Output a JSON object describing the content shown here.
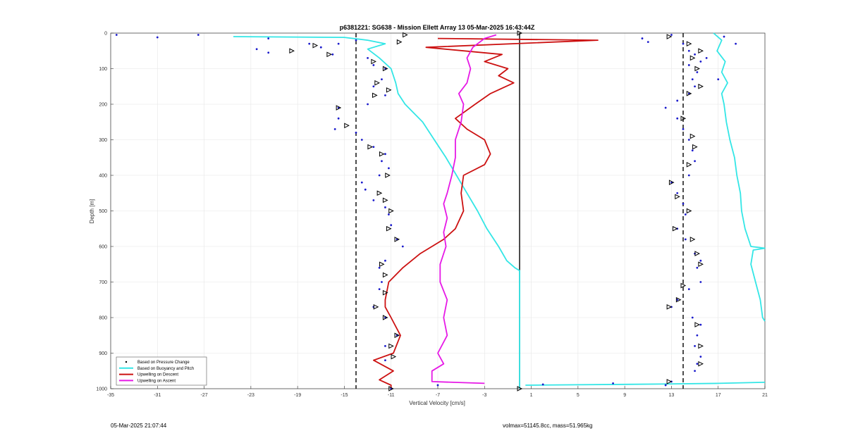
{
  "footer": {
    "timestamp": "05-Mar-2025 21:07:44",
    "info": "volmax=51145.8cc, mass=51.965kg"
  },
  "chart_data": {
    "type": "line",
    "title": "p6381221: SG638 - Mission Ellett Array 13 05-Mar-2025 16:43:44Z",
    "xlabel": "Vertical Velocity [cm/s]",
    "ylabel": "Depth [m]",
    "xlim": [
      -35,
      21
    ],
    "ylim": [
      1000,
      0
    ],
    "x_ticks": [
      -35,
      -31,
      -27,
      -23,
      -19,
      -15,
      -11,
      -7,
      -3,
      1,
      5,
      9,
      13,
      17,
      21
    ],
    "y_ticks": [
      0,
      100,
      200,
      300,
      400,
      500,
      600,
      700,
      800,
      900,
      1000
    ],
    "grid": true,
    "legend_position": "bottom-left",
    "legend": [
      {
        "label": "Based on Pressure Change",
        "color": "#000000",
        "style": "dot"
      },
      {
        "label": "Based on Buoyancy and Pitch",
        "color": "#33e6e6",
        "style": "line"
      },
      {
        "label": "Upwelling on Descent",
        "color": "#cc1111",
        "style": "line"
      },
      {
        "label": "Upwelling on Ascent",
        "color": "#e619e6",
        "style": "line"
      }
    ],
    "reference_lines": [
      {
        "x": -14,
        "style": "dashed",
        "color": "#000000"
      },
      {
        "x": 0,
        "style": "solid",
        "color": "#000000"
      },
      {
        "x": 14,
        "style": "dashed",
        "color": "#000000"
      }
    ],
    "series": [
      {
        "name": "Based on Buoyancy and Pitch",
        "color": "#33e6e6",
        "points": [
          [
            -24.5,
            10
          ],
          [
            -15,
            12
          ],
          [
            -13,
            20
          ],
          [
            -11.5,
            30
          ],
          [
            -13,
            45
          ],
          [
            -12,
            70
          ],
          [
            -11,
            100
          ],
          [
            -10.6,
            140
          ],
          [
            -10.4,
            170
          ],
          [
            -9.8,
            200
          ],
          [
            -8.3,
            250
          ],
          [
            -7.3,
            300
          ],
          [
            -6.3,
            350
          ],
          [
            -5.4,
            400
          ],
          [
            -4.5,
            450
          ],
          [
            -3.6,
            500
          ],
          [
            -2.8,
            550
          ],
          [
            -1.8,
            600
          ],
          [
            -1.1,
            640
          ],
          [
            -0.4,
            660
          ],
          [
            0,
            668
          ],
          [
            0,
            1000
          ]
        ]
      },
      {
        "name": "Based on Buoyancy and Pitch",
        "color": "#33e6e6",
        "points": [
          [
            0.5,
            990
          ],
          [
            5,
            989
          ],
          [
            12,
            987
          ],
          [
            17,
            985
          ],
          [
            21,
            982
          ]
        ]
      },
      {
        "name": "Based on Buoyancy and Pitch",
        "color": "#33e6e6",
        "points": [
          [
            16.6,
            0
          ],
          [
            17.3,
            20
          ],
          [
            16.9,
            50
          ],
          [
            17.6,
            80
          ],
          [
            17.3,
            110
          ],
          [
            17.8,
            140
          ],
          [
            17.3,
            170
          ],
          [
            17.5,
            200
          ],
          [
            17.7,
            250
          ],
          [
            18,
            300
          ],
          [
            18.4,
            350
          ],
          [
            18.6,
            400
          ],
          [
            18.9,
            450
          ],
          [
            19,
            500
          ],
          [
            19.3,
            550
          ],
          [
            19.8,
            600
          ],
          [
            21,
            605
          ],
          [
            20,
            610
          ],
          [
            19.8,
            650
          ],
          [
            20.2,
            700
          ],
          [
            20.6,
            750
          ],
          [
            20.8,
            800
          ],
          [
            21,
            810
          ]
        ]
      },
      {
        "name": "Upwelling on Descent",
        "color": "#cc1111",
        "points": [
          [
            -7,
            15
          ],
          [
            6.7,
            20
          ],
          [
            -8,
            40
          ],
          [
            -1.5,
            60
          ],
          [
            -3,
            80
          ],
          [
            -1,
            100
          ],
          [
            -1.8,
            120
          ],
          [
            -0.5,
            140
          ],
          [
            -2.5,
            170
          ],
          [
            -3.8,
            200
          ],
          [
            -5.5,
            240
          ],
          [
            -4.5,
            270
          ],
          [
            -3,
            300
          ],
          [
            -2.5,
            340
          ],
          [
            -3,
            370
          ],
          [
            -4.8,
            400
          ],
          [
            -5,
            450
          ],
          [
            -4.8,
            500
          ],
          [
            -5.5,
            550
          ],
          [
            -6.5,
            580
          ],
          [
            -8.5,
            620
          ],
          [
            -10,
            660
          ],
          [
            -11.2,
            700
          ],
          [
            -11.5,
            750
          ],
          [
            -11.5,
            770
          ],
          [
            -11,
            800
          ],
          [
            -10.2,
            850
          ],
          [
            -10.8,
            900
          ],
          [
            -12.5,
            920
          ],
          [
            -10.8,
            950
          ],
          [
            -12,
            975
          ],
          [
            -11,
            990
          ],
          [
            -11,
            1000
          ]
        ]
      },
      {
        "name": "Upwelling on Ascent",
        "color": "#e619e6",
        "points": [
          [
            -3,
            985
          ],
          [
            -7.5,
            980
          ],
          [
            -7.5,
            950
          ],
          [
            -6.5,
            930
          ],
          [
            -7,
            900
          ],
          [
            -6.2,
            850
          ],
          [
            -6.5,
            800
          ],
          [
            -6.2,
            750
          ],
          [
            -6.8,
            700
          ],
          [
            -6.8,
            650
          ],
          [
            -6.3,
            600
          ],
          [
            -6.5,
            560
          ],
          [
            -6.2,
            520
          ],
          [
            -6.5,
            480
          ],
          [
            -6.2,
            450
          ],
          [
            -5.8,
            400
          ],
          [
            -5.5,
            350
          ],
          [
            -5.5,
            300
          ],
          [
            -5,
            250
          ],
          [
            -4.8,
            200
          ],
          [
            -5.2,
            170
          ],
          [
            -4.5,
            140
          ],
          [
            -4.2,
            100
          ],
          [
            -4.5,
            70
          ],
          [
            -4,
            40
          ],
          [
            -3,
            15
          ],
          [
            -2,
            5
          ]
        ]
      }
    ],
    "markers": {
      "color": "#1a1acc",
      "points": [
        [
          -34.5,
          5
        ],
        [
          -31,
          12
        ],
        [
          -27.5,
          5
        ],
        [
          -21.5,
          15
        ],
        [
          -22.5,
          45
        ],
        [
          -21.5,
          55
        ],
        [
          -18,
          30
        ],
        [
          -17,
          40
        ],
        [
          -16,
          60
        ],
        [
          -15.5,
          30
        ],
        [
          -14,
          20
        ],
        [
          -13,
          70
        ],
        [
          -12.5,
          90
        ],
        [
          -11.5,
          100
        ],
        [
          -11.8,
          130
        ],
        [
          -12.5,
          150
        ],
        [
          -11.5,
          175
        ],
        [
          -13,
          200
        ],
        [
          -15.5,
          210
        ],
        [
          -15.5,
          240
        ],
        [
          -15.8,
          270
        ],
        [
          -14,
          280
        ],
        [
          -13.5,
          300
        ],
        [
          -12.5,
          320
        ],
        [
          -11.5,
          340
        ],
        [
          -11.8,
          360
        ],
        [
          -11.2,
          380
        ],
        [
          -12,
          400
        ],
        [
          -13.5,
          420
        ],
        [
          -13.2,
          440
        ],
        [
          -12.5,
          470
        ],
        [
          -11.5,
          490
        ],
        [
          -11.2,
          510
        ],
        [
          -11,
          540
        ],
        [
          -10.5,
          580
        ],
        [
          -10,
          600
        ],
        [
          -11.5,
          640
        ],
        [
          -12,
          660
        ],
        [
          -11.8,
          700
        ],
        [
          -12,
          720
        ],
        [
          -12.5,
          770
        ],
        [
          -11.5,
          800
        ],
        [
          -10.5,
          850
        ],
        [
          -11.5,
          880
        ],
        [
          -11.5,
          920
        ],
        [
          -11,
          1000
        ],
        [
          -7,
          990
        ],
        [
          2,
          988
        ],
        [
          8,
          985
        ],
        [
          12.5,
          990
        ],
        [
          13,
          5
        ],
        [
          10.5,
          15
        ],
        [
          11,
          25
        ],
        [
          14,
          30
        ],
        [
          14.5,
          50
        ],
        [
          15,
          60
        ],
        [
          15.5,
          80
        ],
        [
          14.5,
          90
        ],
        [
          15.2,
          110
        ],
        [
          14.8,
          130
        ],
        [
          15,
          150
        ],
        [
          14.5,
          170
        ],
        [
          13.5,
          190
        ],
        [
          12.5,
          210
        ],
        [
          13.5,
          240
        ],
        [
          14,
          270
        ],
        [
          14.5,
          300
        ],
        [
          14.8,
          330
        ],
        [
          15,
          360
        ],
        [
          14.5,
          400
        ],
        [
          13,
          420
        ],
        [
          13.5,
          450
        ],
        [
          14,
          480
        ],
        [
          14.2,
          510
        ],
        [
          13.5,
          550
        ],
        [
          14.2,
          580
        ],
        [
          15,
          620
        ],
        [
          15.5,
          640
        ],
        [
          15.2,
          660
        ],
        [
          15.5,
          700
        ],
        [
          14.5,
          720
        ],
        [
          13.5,
          750
        ],
        [
          13,
          770
        ],
        [
          14.8,
          800
        ],
        [
          15.5,
          820
        ],
        [
          15.2,
          850
        ],
        [
          15,
          880
        ],
        [
          15.5,
          910
        ],
        [
          15.2,
          930
        ],
        [
          15,
          950
        ],
        [
          13,
          980
        ],
        [
          17.5,
          10
        ],
        [
          18.5,
          30
        ],
        [
          16,
          70
        ],
        [
          17,
          130
        ]
      ]
    },
    "triangles": {
      "color": "#000000",
      "points": [
        [
          -19.5,
          50
        ],
        [
          -17.5,
          35
        ],
        [
          -16.3,
          60
        ],
        [
          -12.5,
          80
        ],
        [
          -11.5,
          100
        ],
        [
          -12.2,
          140
        ],
        [
          -11.2,
          160
        ],
        [
          -12.4,
          175
        ],
        [
          -15.5,
          210
        ],
        [
          -14.8,
          260
        ],
        [
          -12.8,
          320
        ],
        [
          -11.8,
          340
        ],
        [
          -11.3,
          400
        ],
        [
          -12,
          450
        ],
        [
          -11.5,
          470
        ],
        [
          -11,
          500
        ],
        [
          -11.2,
          550
        ],
        [
          -10.5,
          580
        ],
        [
          -11.8,
          650
        ],
        [
          -11.5,
          680
        ],
        [
          -11.5,
          730
        ],
        [
          -12.3,
          770
        ],
        [
          -11.5,
          800
        ],
        [
          -10.5,
          850
        ],
        [
          -11,
          880
        ],
        [
          -10.8,
          910
        ],
        [
          -11,
          1000
        ],
        [
          -9.8,
          5
        ],
        [
          -10.3,
          25
        ],
        [
          0,
          0
        ],
        [
          0,
          1000
        ],
        [
          12.8,
          10
        ],
        [
          14.5,
          30
        ],
        [
          15.5,
          50
        ],
        [
          14.8,
          70
        ],
        [
          15.2,
          100
        ],
        [
          15.5,
          150
        ],
        [
          14.5,
          170
        ],
        [
          14,
          240
        ],
        [
          14.8,
          290
        ],
        [
          15,
          320
        ],
        [
          14.5,
          370
        ],
        [
          13,
          420
        ],
        [
          13.5,
          460
        ],
        [
          14.5,
          500
        ],
        [
          13.3,
          550
        ],
        [
          14.8,
          580
        ],
        [
          15.2,
          620
        ],
        [
          15.5,
          650
        ],
        [
          14,
          710
        ],
        [
          13.6,
          750
        ],
        [
          12.8,
          770
        ],
        [
          15.2,
          820
        ],
        [
          15.5,
          880
        ],
        [
          15.5,
          930
        ],
        [
          12.8,
          980
        ]
      ]
    }
  }
}
